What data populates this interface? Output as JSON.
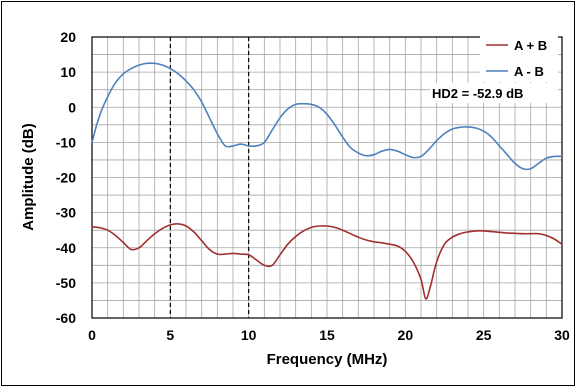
{
  "chart_data": {
    "type": "line",
    "xlabel": "Frequency (MHz)",
    "ylabel": "Amplitude (dB)",
    "xlim": [
      0,
      30
    ],
    "ylim": [
      -60,
      20
    ],
    "x_ticks": [
      "0",
      "5",
      "10",
      "15",
      "20",
      "25",
      "30"
    ],
    "y_ticks": [
      "20",
      "10",
      "0",
      "-10",
      "-20",
      "-30",
      "-40",
      "-50",
      "-60"
    ],
    "grid": true,
    "minor_x_grid_step": 1,
    "y_grid_step": 5,
    "vertical_markers": [
      5,
      10
    ],
    "legend_position": "top-right",
    "annotation": "HD2 = -52.9 dB",
    "series": [
      {
        "name": "A + B",
        "color": "#A03030",
        "x": [
          0,
          0.5,
          1,
          1.5,
          2,
          2.5,
          3,
          3.5,
          4,
          4.5,
          5,
          5.5,
          6,
          6.5,
          7,
          7.5,
          8,
          8.5,
          9,
          9.5,
          10,
          10.5,
          11,
          11.5,
          12,
          12.5,
          13,
          13.5,
          14,
          14.5,
          15,
          15.5,
          16,
          16.5,
          17,
          17.5,
          18,
          18.5,
          19,
          19.5,
          20,
          20.5,
          21,
          21.3,
          21.6,
          22,
          22.5,
          23,
          23.5,
          24,
          24.5,
          25,
          25.5,
          26,
          26.5,
          27,
          27.5,
          28,
          28.5,
          29,
          29.5,
          30
        ],
        "values": [
          -34,
          -34.3,
          -35,
          -36.5,
          -38.5,
          -40.5,
          -40,
          -38,
          -36,
          -34.5,
          -33.5,
          -33.2,
          -33.8,
          -35.5,
          -38,
          -40.5,
          -41.8,
          -41.8,
          -41.6,
          -41.8,
          -42,
          -43.5,
          -45,
          -45,
          -42,
          -39,
          -36.8,
          -35.2,
          -34.2,
          -33.8,
          -33.8,
          -34.2,
          -35,
          -36,
          -37,
          -37.8,
          -38.3,
          -38.6,
          -39,
          -39.5,
          -41,
          -44,
          -49,
          -54.5,
          -51,
          -44,
          -39,
          -37,
          -36,
          -35.5,
          -35.2,
          -35.2,
          -35.4,
          -35.6,
          -35.8,
          -35.9,
          -36,
          -36,
          -36,
          -36.5,
          -37.5,
          -39
        ]
      },
      {
        "name": "A - B",
        "color": "#4F81BD",
        "x": [
          0,
          0.3,
          0.6,
          1,
          1.5,
          2,
          2.5,
          3,
          3.5,
          4,
          4.5,
          5,
          5.5,
          6,
          6.5,
          7,
          7.5,
          8,
          8.5,
          9,
          9.5,
          10,
          10.5,
          11,
          11.5,
          12,
          12.5,
          13,
          13.5,
          14,
          14.5,
          15,
          15.5,
          16,
          16.5,
          17,
          17.5,
          18,
          18.5,
          19,
          19.5,
          20,
          20.5,
          21,
          21.5,
          22,
          22.5,
          23,
          23.5,
          24,
          24.5,
          25,
          25.5,
          26,
          26.5,
          27,
          27.5,
          28,
          28.5,
          29,
          29.5,
          30
        ],
        "values": [
          -10,
          -5,
          -1,
          3,
          7,
          9.5,
          11,
          12,
          12.5,
          12.5,
          12,
          11,
          9.5,
          7.5,
          5,
          1.5,
          -3,
          -7.5,
          -11,
          -11,
          -10.5,
          -11,
          -11,
          -10,
          -6.5,
          -3,
          -0.5,
          0.8,
          1,
          0.8,
          0,
          -2,
          -5,
          -8.5,
          -11.5,
          -13,
          -13.8,
          -13.5,
          -12.5,
          -12,
          -12.5,
          -13.5,
          -14.3,
          -14,
          -12,
          -9.5,
          -7.5,
          -6.2,
          -5.7,
          -5.6,
          -5.9,
          -6.8,
          -8.5,
          -11,
          -13.5,
          -16,
          -17.5,
          -17.5,
          -16,
          -14.5,
          -14,
          -14
        ]
      }
    ]
  }
}
